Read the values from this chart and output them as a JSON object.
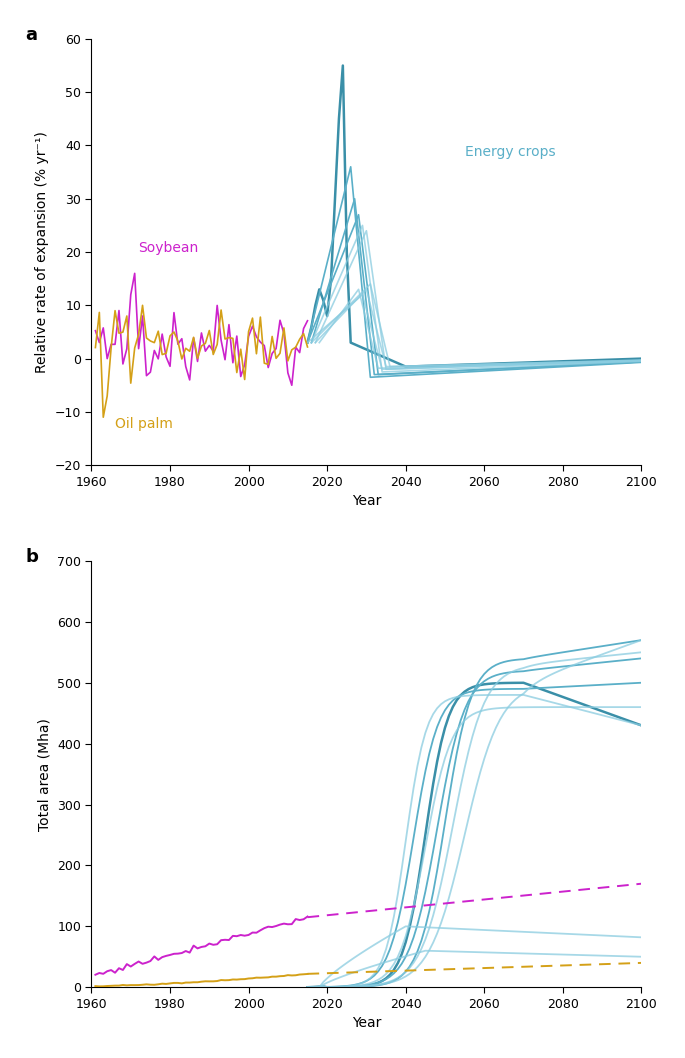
{
  "panel_a": {
    "ylabel": "Relative rate of expansion (% yr⁻¹)",
    "xlabel": "Year",
    "ylim": [
      -20,
      60
    ],
    "xlim": [
      1960,
      2100
    ],
    "yticks": [
      -20,
      -10,
      0,
      10,
      20,
      30,
      40,
      50,
      60
    ],
    "xticks": [
      1960,
      1980,
      2000,
      2020,
      2040,
      2060,
      2080,
      2100
    ],
    "soybean_label": [
      "Soybean",
      1972,
      20
    ],
    "oilpalm_label": [
      "Oil palm",
      1966,
      -13
    ],
    "energy_label": [
      "Energy crops",
      2055,
      38
    ]
  },
  "panel_b": {
    "ylabel": "Total area (Mha)",
    "xlabel": "Year",
    "ylim": [
      0,
      700
    ],
    "xlim": [
      1960,
      2100
    ],
    "yticks": [
      0,
      100,
      200,
      300,
      400,
      500,
      600,
      700
    ],
    "xticks": [
      1960,
      1980,
      2000,
      2020,
      2040,
      2060,
      2080,
      2100
    ]
  },
  "colors": {
    "soybean": "#cc22cc",
    "oilpalm": "#d4a017",
    "energy_dark": "#3a8fa8",
    "energy_mid": "#5aafc8",
    "energy_light": "#8acce0"
  },
  "figsize": [
    6.85,
    10.58
  ],
  "dpi": 100
}
